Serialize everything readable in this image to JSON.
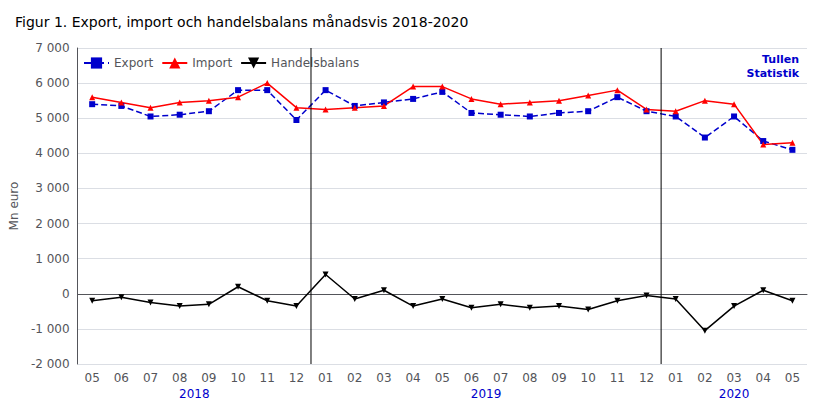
{
  "chart_data": {
    "type": "line",
    "title": "Figur 1. Export, import och handelsbalans månadsvis 2018-2020",
    "ylabel": "Mn euro",
    "categories": [
      "05",
      "06",
      "07",
      "08",
      "09",
      "10",
      "11",
      "12",
      "01",
      "02",
      "03",
      "04",
      "05",
      "06",
      "07",
      "08",
      "09",
      "10",
      "11",
      "12",
      "01",
      "02",
      "03",
      "04",
      "05"
    ],
    "series": [
      {
        "name": "Export",
        "color": "#0000CC",
        "marker": "square",
        "line_style": "dashed",
        "values": [
          5400,
          5350,
          5050,
          5100,
          5200,
          5800,
          5800,
          4950,
          5800,
          5350,
          5450,
          5550,
          5750,
          5150,
          5100,
          5050,
          5150,
          5200,
          5600,
          5200,
          5050,
          4450,
          5050,
          4350,
          4100
        ]
      },
      {
        "name": "Import",
        "color": "#FF0000",
        "marker": "triangle-up",
        "line_style": "solid",
        "values": [
          5600,
          5450,
          5300,
          5450,
          5500,
          5600,
          6000,
          5300,
          5250,
          5300,
          5350,
          5900,
          5900,
          5550,
          5400,
          5450,
          5500,
          5650,
          5800,
          5250,
          5200,
          5500,
          5400,
          4250,
          4300
        ]
      },
      {
        "name": "Handelsbalans",
        "color": "#000000",
        "marker": "triangle-down",
        "line_style": "solid",
        "values": [
          -200,
          -100,
          -250,
          -350,
          -300,
          200,
          -200,
          -350,
          550,
          -150,
          100,
          -350,
          -150,
          -400,
          -300,
          -400,
          -350,
          -450,
          -200,
          -50,
          -150,
          -1050,
          -350,
          100,
          -200
        ]
      }
    ],
    "ylim": [
      -2000,
      7000
    ],
    "yticks": [
      {
        "value": -2000,
        "label": "-2 000"
      },
      {
        "value": -1000,
        "label": "-1 000"
      },
      0,
      {
        "value": 1000,
        "label": "1 000"
      },
      {
        "value": 2000,
        "label": "2 000"
      },
      {
        "value": 3000,
        "label": "3 000"
      },
      {
        "value": 4000,
        "label": "4 000"
      },
      {
        "value": 5000,
        "label": "5 000"
      },
      {
        "value": 6000,
        "label": "6 000"
      },
      {
        "value": 7000,
        "label": "7 000"
      }
    ],
    "grid": true,
    "legend": "upper left",
    "annotations": [
      {
        "text": "2018",
        "color": "#0000CC"
      },
      {
        "text": "2019",
        "color": "#0000CC"
      },
      {
        "text": "2020",
        "color": "#0000CC"
      },
      {
        "text": "Tullen",
        "color": "#0000CC"
      },
      {
        "text": "Statistik",
        "color": "#0000CC"
      }
    ]
  }
}
